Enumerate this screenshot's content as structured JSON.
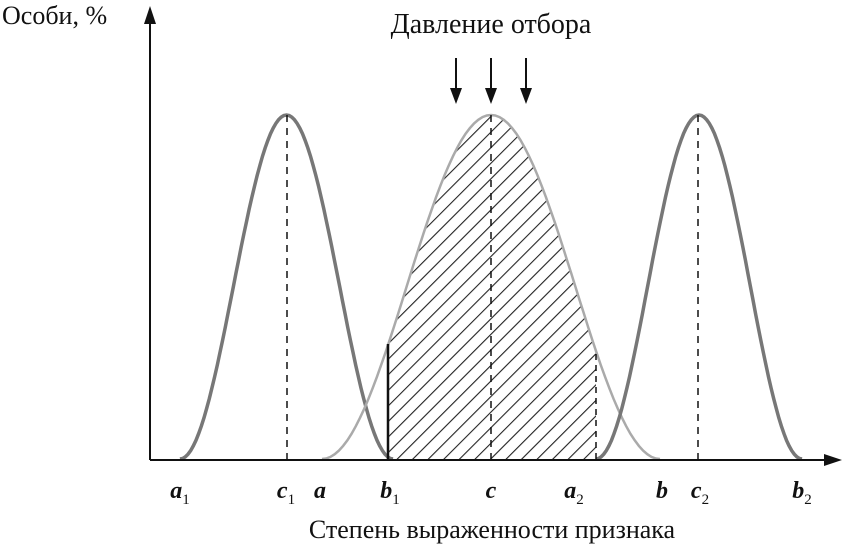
{
  "y_axis_label": "Особи, %",
  "x_axis_label": "Степень выраженности признака",
  "title": "Давление отбора",
  "points": {
    "a1": {
      "base": "a",
      "sub": "1"
    },
    "c1": {
      "base": "c",
      "sub": "1"
    },
    "a": {
      "base": "a",
      "sub": ""
    },
    "b1": {
      "base": "b",
      "sub": "1"
    },
    "c": {
      "base": "c",
      "sub": ""
    },
    "a2": {
      "base": "a",
      "sub": "2"
    },
    "b": {
      "base": "b",
      "sub": ""
    },
    "c2": {
      "base": "c",
      "sub": "2"
    },
    "b2": {
      "base": "b",
      "sub": "2"
    }
  },
  "colors": {
    "axis": "#111111",
    "curve_side": "#777777",
    "curve_center": "#aaaaaa",
    "hatch": "#222222"
  }
}
